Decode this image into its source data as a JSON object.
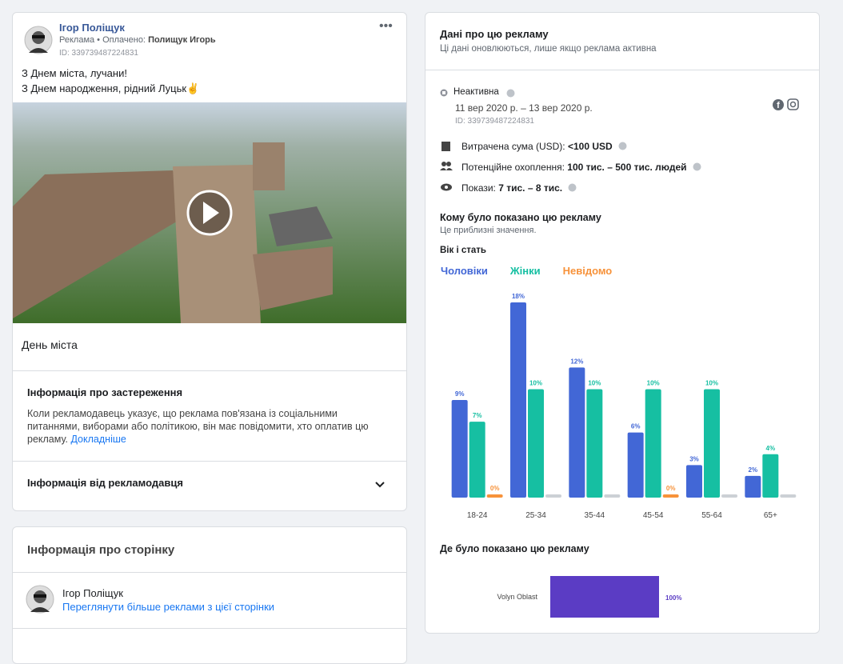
{
  "ad": {
    "name": "Ігор Поліщук",
    "sponsor_prefix": "Реклама • Оплачено:",
    "sponsor": "Полищук Игорь",
    "id": "ID: 339739487224831",
    "text": [
      "З Днем міста, лучани!",
      "З Днем народження, рідний Луцьк✌"
    ],
    "caption": "День міста",
    "disclaimer_title": "Інформація про застереження",
    "disclaimer_body": "Коли рекламодавець указує, що реклама пов'язана із соціальними питаннями, виборами або політикою, він має повідомити, хто оплатив цю рекламу.",
    "disclaimer_link": "Докладніше",
    "advertiser_info": "Інформація від рекламодавця"
  },
  "page_info": {
    "title": "Інформація про сторінку",
    "name": "Ігор Поліщук",
    "link": "Переглянути більше реклами з цієї сторінки"
  },
  "details": {
    "title": "Дані про цю рекламу",
    "subtitle": "Ці дані оновлюються, лише якщо реклама активна",
    "status": "Неактивна",
    "dates": "11 вер 2020 р. – 13 вер 2020 р.",
    "id": "ID: 339739487224831",
    "spend_label": "Витрачена сума (USD):",
    "spend": "<100 USD",
    "reach_label": "Потенційне охоплення:",
    "reach": "100 тис. – 500 тис. людей",
    "impressions_label": "Покази:",
    "impressions": "7 тис. – 8 тис.",
    "audience_title": "Кому було показано цю рекламу",
    "audience_subtitle": "Це приблизні значення.",
    "location_title": "Де було показано цю рекламу"
  },
  "chart_data": [
    {
      "type": "bar",
      "title": "Вік і стать",
      "categories": [
        "18-24",
        "25-34",
        "35-44",
        "45-54",
        "55-64",
        "65+"
      ],
      "ylim": [
        0,
        18
      ],
      "series": [
        {
          "name": "Чоловіки",
          "color": "#4267d6",
          "values": [
            9,
            18,
            12,
            6,
            3,
            2
          ],
          "value_labels": [
            "9%",
            "18%",
            "12%",
            "6%",
            "3%",
            "2%"
          ]
        },
        {
          "name": "Жінки",
          "color": "#16bfa2",
          "values": [
            7,
            10,
            10,
            10,
            10,
            4
          ],
          "value_labels": [
            "7%",
            "10%",
            "10%",
            "10%",
            "10%",
            "4%"
          ]
        },
        {
          "name": "Невідомо",
          "color": "#f7923a",
          "values": [
            0,
            0,
            0,
            0,
            0,
            0
          ],
          "value_labels": [
            "0%",
            null,
            null,
            "0%",
            null,
            null
          ]
        }
      ]
    },
    {
      "type": "hbar",
      "categories": [
        "Volyn Oblast"
      ],
      "values": [
        100
      ],
      "value_labels": [
        "100%"
      ],
      "color": "#5b3cc4",
      "xlim": [
        0,
        100
      ]
    }
  ]
}
